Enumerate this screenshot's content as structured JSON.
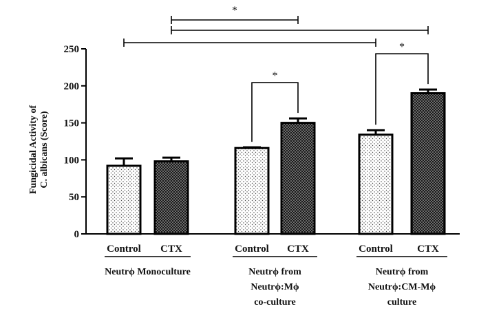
{
  "chart_data": {
    "type": "bar",
    "ylabel_lines": [
      "Fungicidal Activity of",
      "C. albicans (Score)"
    ],
    "ylim": [
      0,
      250
    ],
    "yticks": [
      0,
      50,
      100,
      150,
      200,
      250
    ],
    "groups": [
      {
        "label_lines": [
          "Neutrϕ Monoculture"
        ],
        "bars": [
          {
            "label": "Control",
            "value": 92,
            "error": 10,
            "pattern": "light"
          },
          {
            "label": "CTX",
            "value": 98,
            "error": 5,
            "pattern": "dark"
          }
        ]
      },
      {
        "label_lines": [
          "Neutrϕ from",
          "Neutrϕ:Mϕ",
          "co-culture"
        ],
        "bars": [
          {
            "label": "Control",
            "value": 116,
            "error": 1,
            "pattern": "light"
          },
          {
            "label": "CTX",
            "value": 150,
            "error": 6,
            "pattern": "dark"
          }
        ]
      },
      {
        "label_lines": [
          "Neutrϕ from",
          "Neutrϕ:CM-Mϕ",
          "culture"
        ],
        "bars": [
          {
            "label": "Control",
            "value": 134,
            "error": 6,
            "pattern": "light"
          },
          {
            "label": "CTX",
            "value": 190,
            "error": 5,
            "pattern": "dark"
          }
        ]
      }
    ],
    "significance": [
      {
        "from": [
          1,
          0
        ],
        "to": [
          1,
          1
        ],
        "type": "bracket",
        "label": "*"
      },
      {
        "from": [
          2,
          0
        ],
        "to": [
          2,
          1
        ],
        "type": "bracket",
        "label": "*"
      },
      {
        "from": [
          0,
          0
        ],
        "to": [
          2,
          0
        ],
        "type": "span",
        "label": ""
      },
      {
        "from": [
          0,
          1
        ],
        "to": [
          2,
          1
        ],
        "type": "span",
        "label": ""
      },
      {
        "from": [
          0,
          1
        ],
        "to": [
          1,
          1
        ],
        "type": "span",
        "label": "*"
      }
    ]
  }
}
